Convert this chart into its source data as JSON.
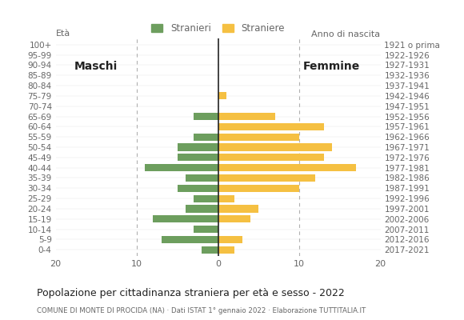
{
  "age_groups": [
    "0-4",
    "5-9",
    "10-14",
    "15-19",
    "20-24",
    "25-29",
    "30-34",
    "35-39",
    "40-44",
    "45-49",
    "50-54",
    "55-59",
    "60-64",
    "65-69",
    "70-74",
    "75-79",
    "80-84",
    "85-89",
    "90-94",
    "95-99",
    "100+"
  ],
  "birth_years": [
    "2017-2021",
    "2012-2016",
    "2007-2011",
    "2002-2006",
    "1997-2001",
    "1992-1996",
    "1987-1991",
    "1982-1986",
    "1977-1981",
    "1972-1976",
    "1967-1971",
    "1962-1966",
    "1957-1961",
    "1952-1956",
    "1947-1951",
    "1942-1946",
    "1937-1941",
    "1932-1936",
    "1927-1931",
    "1922-1926",
    "1921 o prima"
  ],
  "males": [
    2,
    7,
    3,
    8,
    4,
    3,
    5,
    4,
    9,
    5,
    5,
    3,
    0,
    3,
    0,
    0,
    0,
    0,
    0,
    0,
    0
  ],
  "females": [
    2,
    3,
    0,
    4,
    5,
    2,
    10,
    12,
    17,
    13,
    14,
    10,
    13,
    7,
    0,
    1,
    0,
    0,
    0,
    0,
    0
  ],
  "male_color": "#6d9e5e",
  "female_color": "#f5c042",
  "grid_color": "#cccccc",
  "dashed_line_color": "#b0b0b0",
  "axis_line_color": "#222222",
  "xlim": 20,
  "title": "Popolazione per cittadinanza straniera per età e sesso - 2022",
  "subtitle": "COMUNE DI MONTE DI PROCIDA (NA) · Dati ISTAT 1° gennaio 2022 · Elaborazione TUTTITALIA.IT",
  "eta_label": "Età",
  "anno_label": "Anno di nascita",
  "maschi_label": "Maschi",
  "femmine_label": "Femmine",
  "legend_male": "Stranieri",
  "legend_female": "Straniere",
  "bg_color": "#ffffff",
  "text_color": "#666666",
  "title_color": "#222222"
}
